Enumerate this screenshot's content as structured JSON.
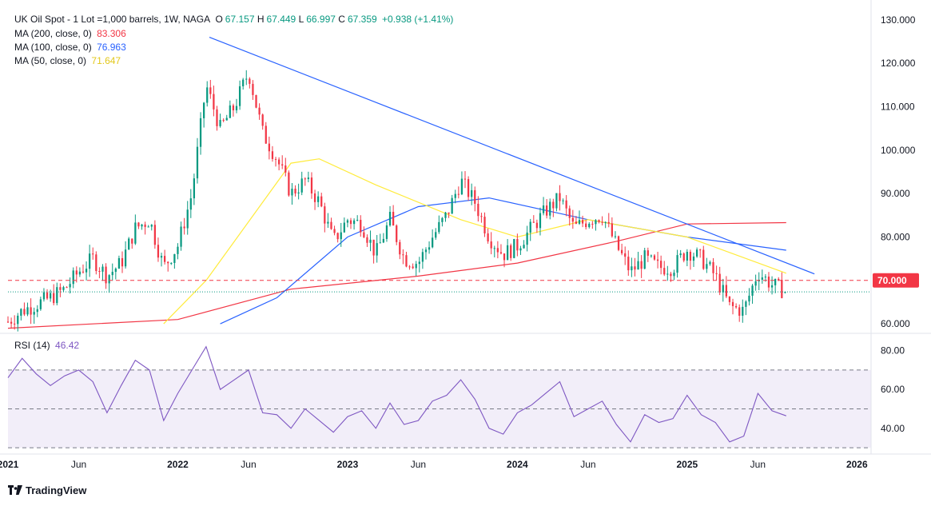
{
  "legend": {
    "symbol": "UK Oil Spot - 1 Lot =1,000 barrels, 1W, NAGA",
    "open_label": "O",
    "open": "67.157",
    "high_label": "H",
    "high": "67.449",
    "low_label": "L",
    "low": "66.997",
    "close_label": "C",
    "close": "67.359",
    "change": "+0.938 (+1.41%)",
    "ma200_label": "MA (200, close, 0)",
    "ma200_value": "83.306",
    "ma100_label": "MA (100, close, 0)",
    "ma100_value": "76.963",
    "ma50_label": "MA (50, close, 0)",
    "ma50_value": "71.647"
  },
  "rsi_legend": {
    "label": "RSI (14)",
    "value": "46.42"
  },
  "price_badge": "70.000",
  "branding": "TradingView",
  "colors": {
    "up": "#089981",
    "down": "#f23645",
    "ma200": "#f23645",
    "ma100": "#2962ff",
    "ma50": "#ffeb3b",
    "trendline": "#2962ff",
    "rsi": "#7e57c2"
  },
  "chart_data": [
    {
      "type": "candlestick",
      "title": "UK Oil Spot - 1 Lot =1,000 barrels, 1W, NAGA",
      "y_axis_ticks": [
        "130.000",
        "120.000",
        "110.000",
        "100.000",
        "90.000",
        "80.000",
        "70.000",
        "60.000"
      ],
      "ylim": [
        58,
        132
      ],
      "x_axis_ticks": [
        "2021",
        "Jun",
        "2022",
        "Jun",
        "2023",
        "Jun",
        "2024",
        "Jun",
        "2025",
        "Jun",
        "2026"
      ],
      "x_range": [
        "2021-01",
        "2026-02"
      ],
      "last_bar": {
        "open": 67.157,
        "high": 67.449,
        "low": 66.997,
        "close": 67.359
      },
      "series_path": [
        [
          "2021-01-01",
          60.5
        ],
        [
          "2021-02-01",
          63
        ],
        [
          "2021-03-01",
          64.5
        ],
        [
          "2021-04-01",
          66
        ],
        [
          "2021-05-01",
          68
        ],
        [
          "2021-06-01",
          72
        ],
        [
          "2021-07-01",
          75
        ],
        [
          "2021-08-01",
          71
        ],
        [
          "2021-09-01",
          74
        ],
        [
          "2021-10-01",
          82
        ],
        [
          "2021-11-01",
          84
        ],
        [
          "2021-12-01",
          73
        ],
        [
          "2022-01-01",
          78
        ],
        [
          "2022-02-01",
          90
        ],
        [
          "2022-03-01",
          115
        ],
        [
          "2022-04-01",
          105
        ],
        [
          "2022-05-01",
          110
        ],
        [
          "2022-06-01",
          118
        ],
        [
          "2022-07-01",
          104
        ],
        [
          "2022-08-01",
          98
        ],
        [
          "2022-09-01",
          90
        ],
        [
          "2022-10-01",
          93
        ],
        [
          "2022-11-01",
          88
        ],
        [
          "2022-12-01",
          79
        ],
        [
          "2023-01-01",
          84
        ],
        [
          "2023-02-01",
          83
        ],
        [
          "2023-03-01",
          76
        ],
        [
          "2023-04-01",
          84
        ],
        [
          "2023-05-01",
          75
        ],
        [
          "2023-06-01",
          74
        ],
        [
          "2023-07-01",
          80
        ],
        [
          "2023-08-01",
          85
        ],
        [
          "2023-09-01",
          93
        ],
        [
          "2023-10-01",
          88
        ],
        [
          "2023-11-01",
          80
        ],
        [
          "2023-12-01",
          76
        ],
        [
          "2024-01-01",
          78
        ],
        [
          "2024-02-01",
          82
        ],
        [
          "2024-03-01",
          86
        ],
        [
          "2024-04-01",
          89
        ],
        [
          "2024-05-01",
          82
        ],
        [
          "2024-06-01",
          84
        ],
        [
          "2024-07-01",
          85
        ],
        [
          "2024-08-01",
          78
        ],
        [
          "2024-09-01",
          72
        ],
        [
          "2024-10-01",
          75
        ],
        [
          "2024-11-01",
          73
        ],
        [
          "2024-12-01",
          73
        ],
        [
          "2025-01-01",
          77
        ],
        [
          "2025-02-01",
          75
        ],
        [
          "2025-03-01",
          71
        ],
        [
          "2025-04-01",
          64
        ],
        [
          "2025-05-01",
          63
        ],
        [
          "2025-06-01",
          72
        ],
        [
          "2025-07-01",
          69
        ],
        [
          "2025-08-01",
          67.36
        ]
      ],
      "ma200": [
        [
          "2021-01-01",
          59
        ],
        [
          "2022-01-01",
          61
        ],
        [
          "2022-09-01",
          68
        ],
        [
          "2023-06-01",
          71
        ],
        [
          "2024-01-01",
          74
        ],
        [
          "2024-08-01",
          79
        ],
        [
          "2025-01-01",
          83
        ],
        [
          "2025-08-01",
          83.31
        ]
      ],
      "ma100": [
        [
          "2022-04-01",
          60
        ],
        [
          "2022-08-01",
          66
        ],
        [
          "2023-01-01",
          80
        ],
        [
          "2023-06-01",
          87
        ],
        [
          "2023-11-01",
          89
        ],
        [
          "2024-06-01",
          84
        ],
        [
          "2025-01-01",
          80
        ],
        [
          "2025-08-01",
          76.96
        ]
      ],
      "ma50": [
        [
          "2021-12-01",
          60
        ],
        [
          "2022-03-01",
          70
        ],
        [
          "2022-09-01",
          97
        ],
        [
          "2022-11-01",
          98
        ],
        [
          "2023-03-01",
          92
        ],
        [
          "2023-09-01",
          84
        ],
        [
          "2024-01-01",
          80
        ],
        [
          "2024-06-01",
          84
        ],
        [
          "2025-01-01",
          80
        ],
        [
          "2025-08-01",
          71.65
        ]
      ],
      "trendline": [
        [
          "2022-03-08",
          126
        ],
        [
          "2025-10-01",
          71.5
        ]
      ],
      "horizontal_level": 70,
      "last_price_line": 67.36
    },
    {
      "type": "line",
      "title": "RSI (14)",
      "y_axis_ticks": [
        "80.00",
        "60.00",
        "40.00"
      ],
      "ylim": [
        28,
        86
      ],
      "bands": [
        30,
        50,
        70
      ],
      "values": [
        [
          "2021-01-01",
          66
        ],
        [
          "2021-02-01",
          76
        ],
        [
          "2021-03-01",
          68
        ],
        [
          "2021-04-01",
          62
        ],
        [
          "2021-05-01",
          67
        ],
        [
          "2021-06-01",
          70
        ],
        [
          "2021-07-01",
          64
        ],
        [
          "2021-08-01",
          48
        ],
        [
          "2021-09-01",
          62
        ],
        [
          "2021-10-01",
          75
        ],
        [
          "2021-11-01",
          70
        ],
        [
          "2021-12-01",
          44
        ],
        [
          "2022-01-01",
          58
        ],
        [
          "2022-02-01",
          70
        ],
        [
          "2022-03-01",
          82
        ],
        [
          "2022-04-01",
          60
        ],
        [
          "2022-05-01",
          65
        ],
        [
          "2022-06-01",
          70
        ],
        [
          "2022-07-01",
          48
        ],
        [
          "2022-08-01",
          47
        ],
        [
          "2022-09-01",
          40
        ],
        [
          "2022-10-01",
          50
        ],
        [
          "2022-11-01",
          44
        ],
        [
          "2022-12-01",
          38
        ],
        [
          "2023-01-01",
          46
        ],
        [
          "2023-02-01",
          49
        ],
        [
          "2023-03-01",
          40
        ],
        [
          "2023-04-01",
          53
        ],
        [
          "2023-05-01",
          42
        ],
        [
          "2023-06-01",
          44
        ],
        [
          "2023-07-01",
          54
        ],
        [
          "2023-08-01",
          57
        ],
        [
          "2023-09-01",
          65
        ],
        [
          "2023-10-01",
          55
        ],
        [
          "2023-11-01",
          40
        ],
        [
          "2023-12-01",
          37
        ],
        [
          "2024-01-01",
          48
        ],
        [
          "2024-02-01",
          52
        ],
        [
          "2024-03-01",
          58
        ],
        [
          "2024-04-01",
          64
        ],
        [
          "2024-05-01",
          46
        ],
        [
          "2024-06-01",
          50
        ],
        [
          "2024-07-01",
          54
        ],
        [
          "2024-08-01",
          42
        ],
        [
          "2024-09-01",
          33
        ],
        [
          "2024-10-01",
          47
        ],
        [
          "2024-11-01",
          43
        ],
        [
          "2024-12-01",
          45
        ],
        [
          "2025-01-01",
          57
        ],
        [
          "2025-02-01",
          47
        ],
        [
          "2025-03-01",
          43
        ],
        [
          "2025-04-01",
          33
        ],
        [
          "2025-05-01",
          36
        ],
        [
          "2025-06-01",
          58
        ],
        [
          "2025-07-01",
          49
        ],
        [
          "2025-08-01",
          46.42
        ]
      ]
    }
  ]
}
